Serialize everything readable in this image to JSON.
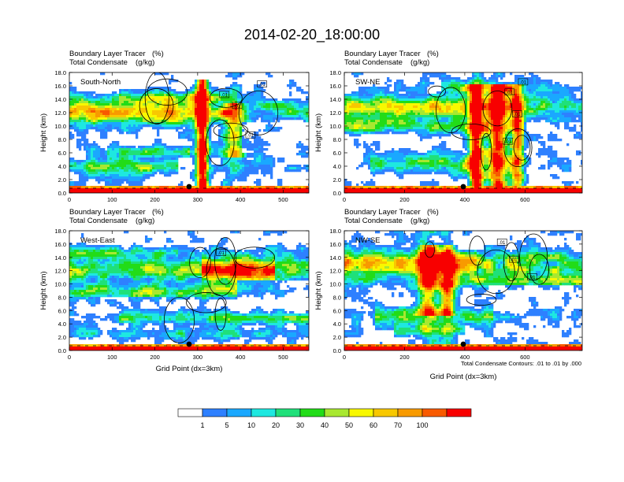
{
  "page": {
    "title": "2014-02-20_18:00:00",
    "footnote": "Total Condensate Contours: .01 to .01 by .000"
  },
  "chart_data": [
    {
      "type": "heatmap",
      "panel": "South-North",
      "subtitle_left1": "Boundary Layer Tracer",
      "subtitle_unit1": "(%)",
      "subtitle_left2": "Total Condensate",
      "subtitle_unit2": "(g/kg)",
      "ylabel": "Height (km)",
      "xlabel": "",
      "xlim": [
        0,
        560
      ],
      "ylim": [
        0,
        18
      ],
      "xticks": [
        "0",
        "100",
        "200",
        "300",
        "400",
        "500"
      ],
      "yticks": [
        "0.0",
        "2.0",
        "4.0",
        "6.0",
        "8.0",
        "10.0",
        "12.0",
        "14.0",
        "16.0",
        "18.0"
      ],
      "marker_x": 280,
      "contour_labels": [
        ".01",
        ".01",
        ".01",
        ".01"
      ]
    },
    {
      "type": "heatmap",
      "panel": "SW-NE",
      "subtitle_left1": "Boundary Layer Tracer",
      "subtitle_unit1": "(%)",
      "subtitle_left2": "Total Condensate",
      "subtitle_unit2": "(g/kg)",
      "ylabel": "Height (km)",
      "xlabel": "",
      "xlim": [
        0,
        790
      ],
      "ylim": [
        0,
        18
      ],
      "xticks": [
        "0",
        "200",
        "400",
        "600"
      ],
      "yticks": [
        "0.0",
        "2.0",
        "4.0",
        "6.0",
        "8.0",
        "10.0",
        "12.0",
        "14.0",
        "16.0",
        "18.0"
      ],
      "marker_x": 395,
      "contour_labels": [
        ".01",
        ".01",
        ".01",
        ".01"
      ]
    },
    {
      "type": "heatmap",
      "panel": "West-East",
      "subtitle_left1": "Boundary Layer Tracer",
      "subtitle_unit1": "(%)",
      "subtitle_left2": "Total Condensate",
      "subtitle_unit2": "(g/kg)",
      "ylabel": "Height (km)",
      "xlabel": "Grid Point (dx=3km)",
      "xlim": [
        0,
        560
      ],
      "ylim": [
        0,
        18
      ],
      "xticks": [
        "0",
        "100",
        "200",
        "300",
        "400",
        "500"
      ],
      "yticks": [
        "0.0",
        "2.0",
        "4.0",
        "6.0",
        "8.0",
        "10.0",
        "12.0",
        "14.0",
        "16.0",
        "18.0"
      ],
      "marker_x": 280,
      "contour_labels": [
        ".01"
      ]
    },
    {
      "type": "heatmap",
      "panel": "NW-SE",
      "subtitle_left1": "Boundary Layer Tracer",
      "subtitle_unit1": "(%)",
      "subtitle_left2": "Total Condensate",
      "subtitle_unit2": "(g/kg)",
      "ylabel": "Height (km)",
      "xlabel": "Grid Point (dx=3km)",
      "xlim": [
        0,
        790
      ],
      "ylim": [
        0,
        18
      ],
      "xticks": [
        "0",
        "200",
        "400",
        "600"
      ],
      "yticks": [
        "0.0",
        "2.0",
        "4.0",
        "6.0",
        "8.0",
        "10.0",
        "12.0",
        "14.0",
        "16.0",
        "18.0"
      ],
      "marker_x": 395,
      "contour_labels": [
        ".01",
        ".01",
        ".01"
      ]
    }
  ],
  "colorbar": {
    "labels": [
      "1",
      "5",
      "10",
      "20",
      "30",
      "40",
      "50",
      "60",
      "70",
      "100"
    ],
    "colors": [
      "#ffffff",
      "#2e80ff",
      "#1aa8ff",
      "#1ee8e0",
      "#1fe07a",
      "#22dc18",
      "#a8e830",
      "#f8f800",
      "#f8c800",
      "#f89a00",
      "#f85a00",
      "#f80000"
    ]
  }
}
